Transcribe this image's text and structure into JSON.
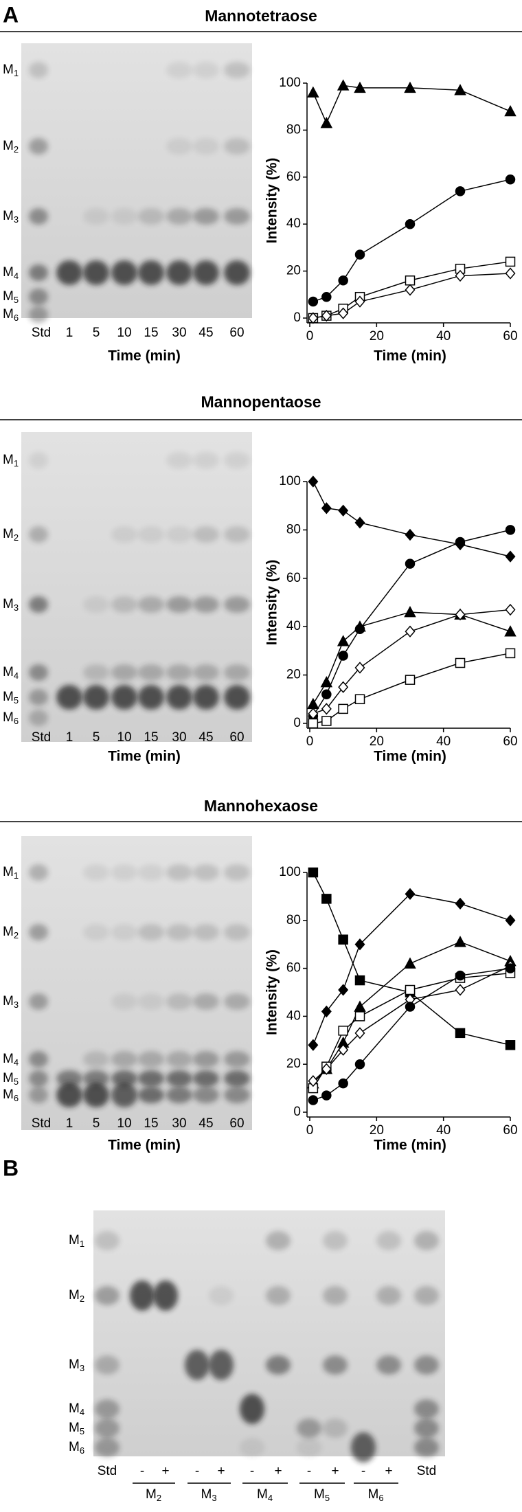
{
  "panel_labels": [
    "A",
    "B"
  ],
  "chart_data": [
    {
      "type": "line",
      "title": "Mannotetraose",
      "xlabel": "Time (min)",
      "ylabel": "Intensity (%)",
      "x": [
        1,
        5,
        10,
        15,
        30,
        45,
        60
      ],
      "xlim": [
        0,
        60
      ],
      "xticks": [
        0,
        20,
        40,
        60
      ],
      "ylim": [
        0,
        100
      ],
      "yticks": [
        0,
        20,
        40,
        60,
        80,
        100
      ],
      "series": [
        {
          "marker": "triangle",
          "filled": true,
          "color": "#000000",
          "values": [
            96,
            83,
            99,
            98,
            98,
            97,
            88
          ]
        },
        {
          "marker": "circle",
          "filled": true,
          "color": "#000000",
          "values": [
            7,
            9,
            16,
            27,
            40,
            54,
            59
          ]
        },
        {
          "marker": "square",
          "filled": false,
          "color": "#000000",
          "values": [
            0,
            1,
            4,
            9,
            16,
            21,
            24
          ]
        },
        {
          "marker": "diamond",
          "filled": false,
          "color": "#000000",
          "values": [
            0,
            1,
            2,
            7,
            12,
            18,
            19
          ]
        }
      ]
    },
    {
      "type": "line",
      "title": "Mannopentaose",
      "xlabel": "Time (min)",
      "ylabel": "Intensity (%)",
      "x": [
        1,
        5,
        10,
        15,
        30,
        45,
        60
      ],
      "xlim": [
        0,
        60
      ],
      "xticks": [
        0,
        20,
        40,
        60
      ],
      "ylim": [
        0,
        100
      ],
      "yticks": [
        0,
        20,
        40,
        60,
        80,
        100
      ],
      "series": [
        {
          "marker": "diamond",
          "filled": true,
          "color": "#000000",
          "values": [
            100,
            89,
            88,
            83,
            78,
            74,
            69
          ]
        },
        {
          "marker": "circle",
          "filled": true,
          "color": "#000000",
          "values": [
            3,
            12,
            28,
            39,
            66,
            75,
            80
          ]
        },
        {
          "marker": "triangle",
          "filled": true,
          "color": "#000000",
          "values": [
            8,
            17,
            34,
            40,
            46,
            45,
            38
          ]
        },
        {
          "marker": "diamond",
          "filled": false,
          "color": "#000000",
          "values": [
            4,
            6,
            15,
            23,
            38,
            45,
            47
          ]
        },
        {
          "marker": "square",
          "filled": false,
          "color": "#000000",
          "values": [
            0,
            1,
            6,
            10,
            18,
            25,
            29
          ]
        }
      ]
    },
    {
      "type": "line",
      "title": "Mannohexaose",
      "xlabel": "Time (min)",
      "ylabel": "Intensity (%)",
      "x": [
        1,
        5,
        10,
        15,
        30,
        45,
        60
      ],
      "xlim": [
        0,
        60
      ],
      "xticks": [
        0,
        20,
        40,
        60
      ],
      "ylim": [
        0,
        100
      ],
      "yticks": [
        0,
        20,
        40,
        60,
        80,
        100
      ],
      "series": [
        {
          "marker": "square",
          "filled": true,
          "color": "#000000",
          "values": [
            100,
            89,
            72,
            55,
            50,
            33,
            28
          ]
        },
        {
          "marker": "diamond",
          "filled": true,
          "color": "#000000",
          "values": [
            28,
            42,
            51,
            70,
            91,
            87,
            80
          ]
        },
        {
          "marker": "triangle",
          "filled": true,
          "color": "#000000",
          "values": [
            12,
            18,
            29,
            44,
            62,
            71,
            63
          ]
        },
        {
          "marker": "square",
          "filled": false,
          "color": "#000000",
          "values": [
            10,
            19,
            34,
            40,
            51,
            56,
            58
          ]
        },
        {
          "marker": "diamond",
          "filled": false,
          "color": "#000000",
          "values": [
            13,
            18,
            26,
            33,
            47,
            51,
            61
          ]
        },
        {
          "marker": "circle",
          "filled": true,
          "color": "#000000",
          "values": [
            5,
            7,
            12,
            20,
            44,
            57,
            60
          ]
        }
      ]
    }
  ],
  "gels": [
    {
      "markers": [
        {
          "letter": "M",
          "sub": "1"
        },
        {
          "letter": "M",
          "sub": "2"
        },
        {
          "letter": "M",
          "sub": "3"
        },
        {
          "letter": "M",
          "sub": "4"
        },
        {
          "letter": "M",
          "sub": "5"
        },
        {
          "letter": "M",
          "sub": "6"
        }
      ],
      "lanes": [
        "Std",
        "1",
        "5",
        "10",
        "15",
        "30",
        "45",
        "60"
      ],
      "xlabel": "Time (min)"
    },
    {
      "markers": [
        {
          "letter": "M",
          "sub": "1"
        },
        {
          "letter": "M",
          "sub": "2"
        },
        {
          "letter": "M",
          "sub": "3"
        },
        {
          "letter": "M",
          "sub": "4"
        },
        {
          "letter": "M",
          "sub": "5"
        },
        {
          "letter": "M",
          "sub": "6"
        }
      ],
      "lanes": [
        "Std",
        "1",
        "5",
        "10",
        "15",
        "30",
        "45",
        "60"
      ],
      "xlabel": "Time (min)"
    },
    {
      "markers": [
        {
          "letter": "M",
          "sub": "1"
        },
        {
          "letter": "M",
          "sub": "2"
        },
        {
          "letter": "M",
          "sub": "3"
        },
        {
          "letter": "M",
          "sub": "4"
        },
        {
          "letter": "M",
          "sub": "5"
        },
        {
          "letter": "M",
          "sub": "6"
        }
      ],
      "lanes": [
        "Std",
        "1",
        "5",
        "10",
        "15",
        "30",
        "45",
        "60"
      ],
      "xlabel": "Time (min)"
    }
  ],
  "gel_b": {
    "markers": [
      {
        "letter": "M",
        "sub": "1"
      },
      {
        "letter": "M",
        "sub": "2"
      },
      {
        "letter": "M",
        "sub": "3"
      },
      {
        "letter": "M",
        "sub": "4"
      },
      {
        "letter": "M",
        "sub": "5"
      },
      {
        "letter": "M",
        "sub": "6"
      }
    ],
    "lanes": [
      "Std",
      "-",
      "+",
      "-",
      "+",
      "-",
      "+",
      "-",
      "+",
      "-",
      "+",
      "Std"
    ],
    "groups": [
      {
        "letter": "M",
        "sub": "2"
      },
      {
        "letter": "M",
        "sub": "3"
      },
      {
        "letter": "M",
        "sub": "4"
      },
      {
        "letter": "M",
        "sub": "5"
      },
      {
        "letter": "M",
        "sub": "6"
      }
    ]
  }
}
